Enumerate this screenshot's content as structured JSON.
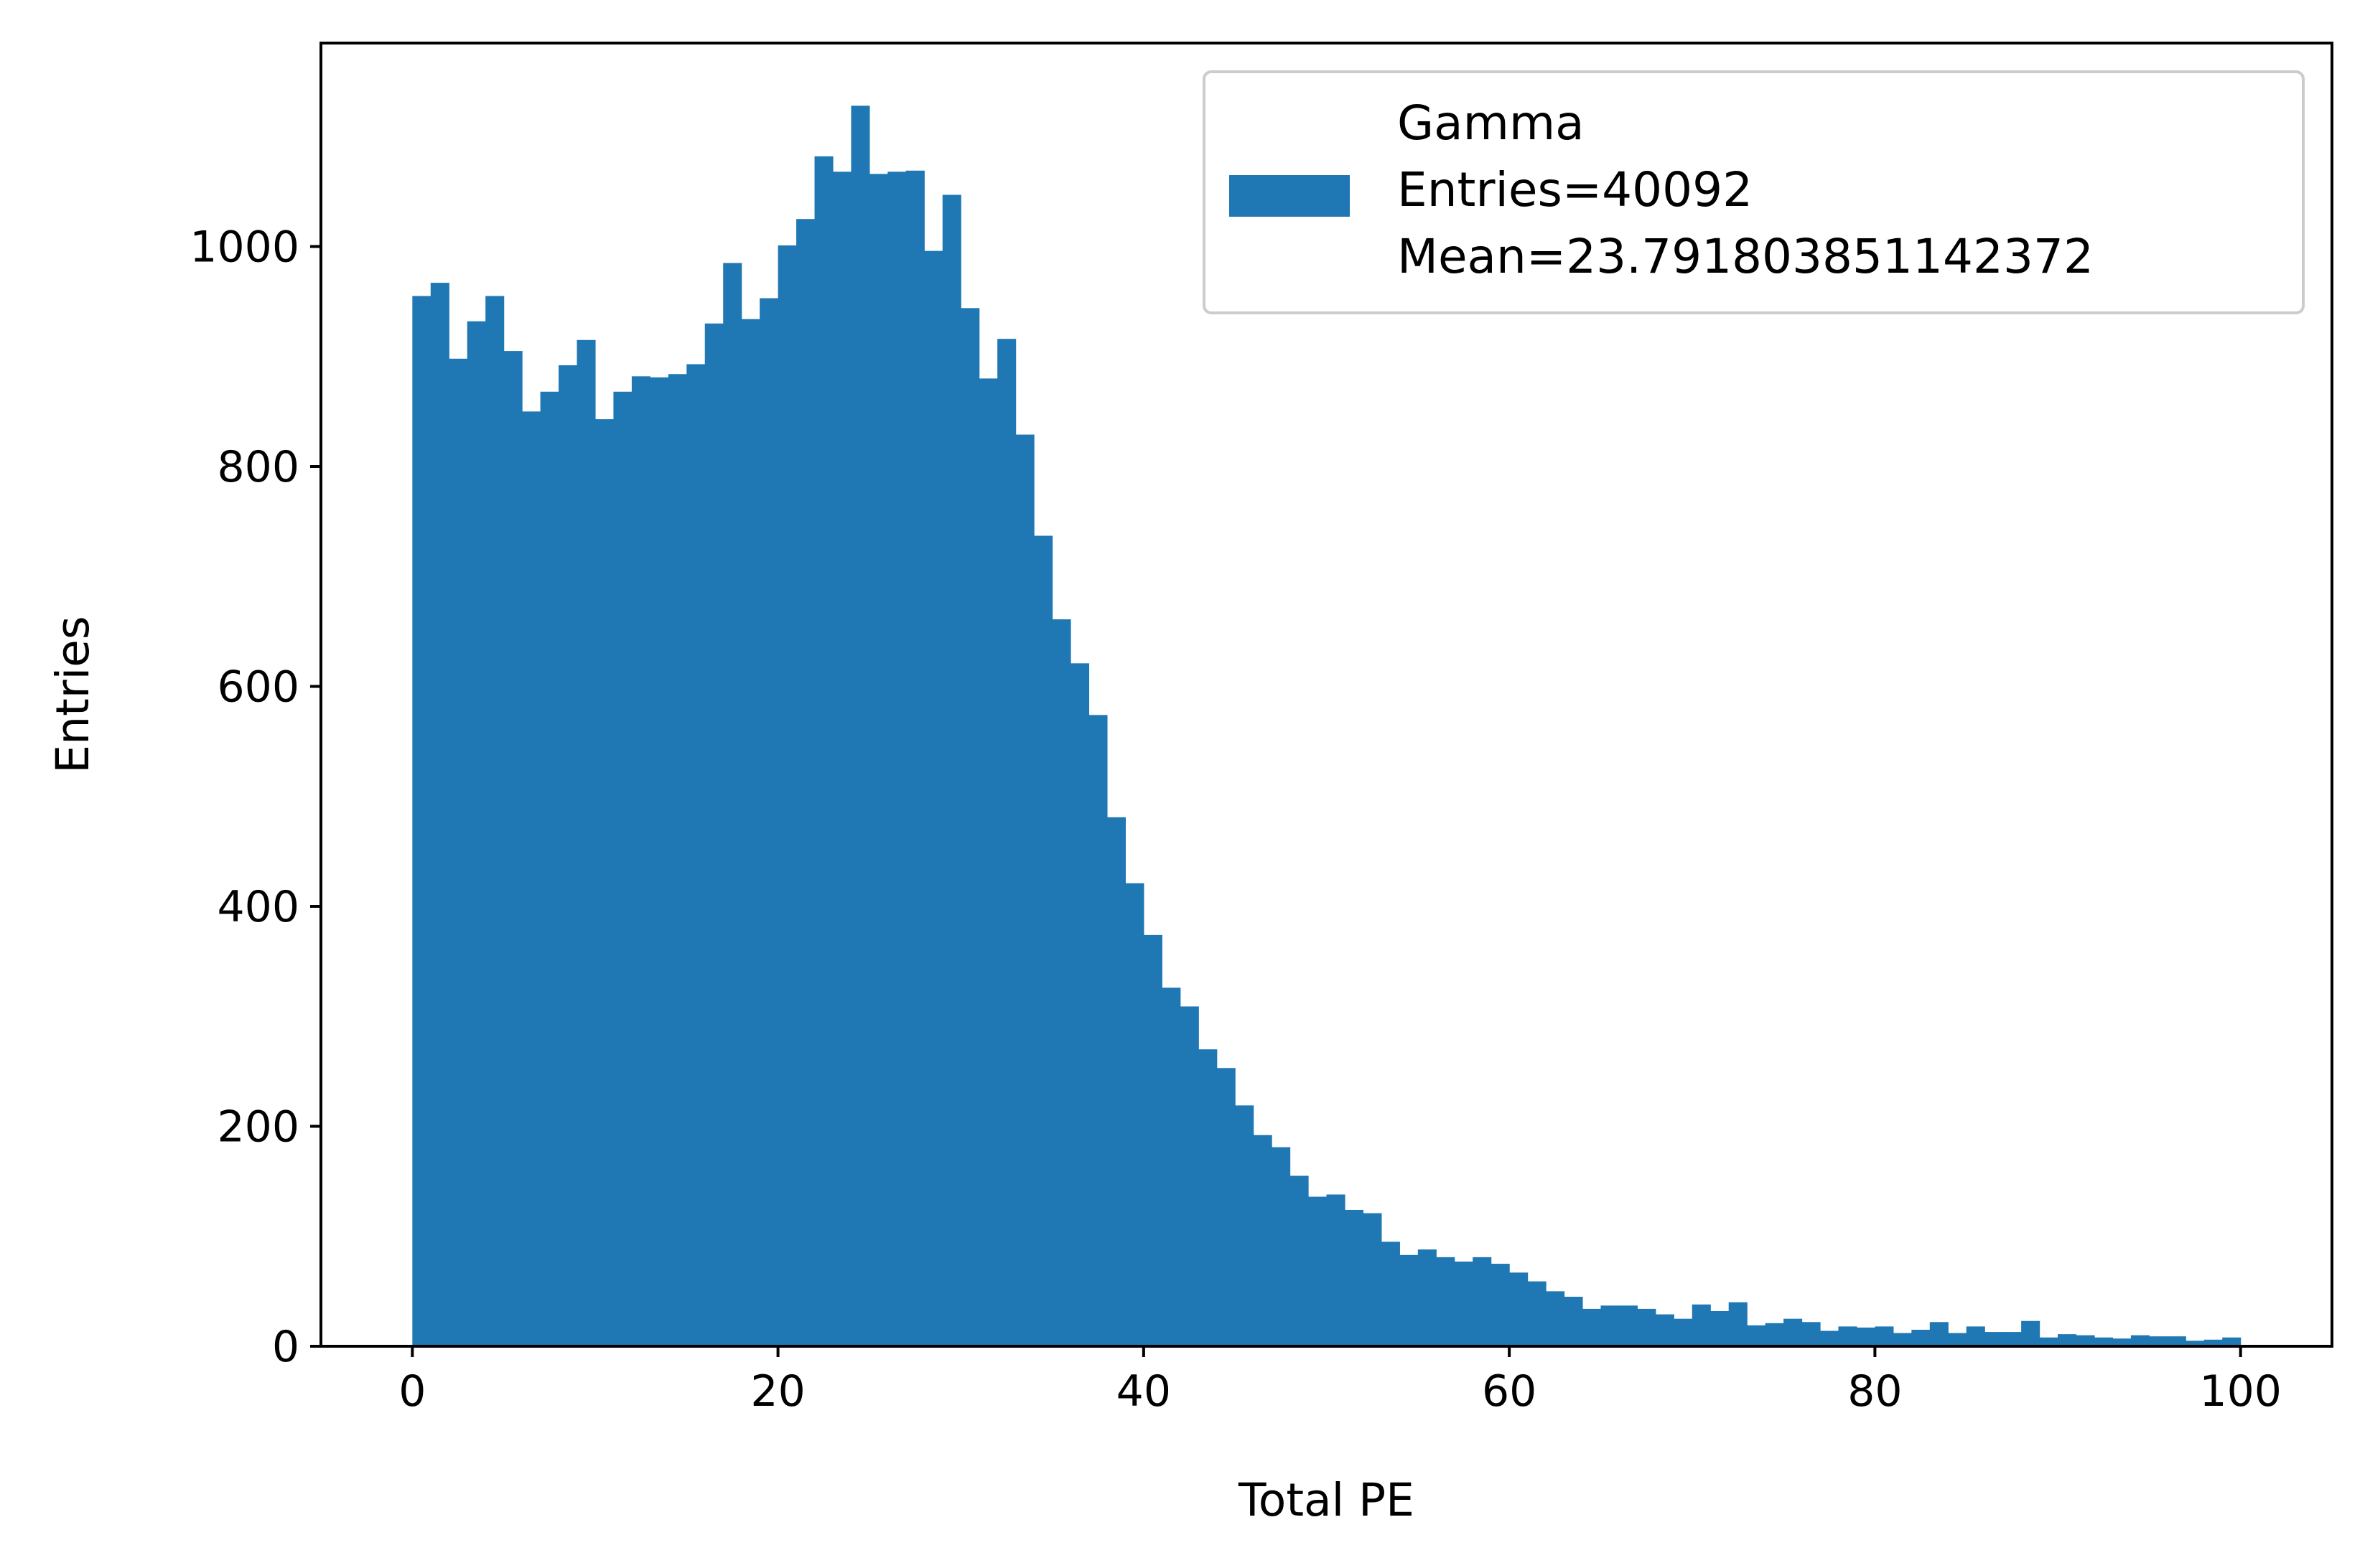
{
  "chart_data": {
    "type": "bar",
    "subtype": "histogram",
    "xlabel": "Total PE",
    "ylabel": "Entries",
    "xlim": [
      -5,
      105
    ],
    "ylim": [
      0,
      1185
    ],
    "x_ticks": [
      0,
      20,
      40,
      60,
      80,
      100
    ],
    "y_ticks": [
      0,
      200,
      400,
      600,
      800,
      1000
    ],
    "bin_edges_range": [
      0,
      100
    ],
    "bin_width": 1,
    "grid": false,
    "legend_position": "top-right",
    "series": [
      {
        "name": "Gamma",
        "legend_lines": [
          "Gamma",
          "Entries=40092",
          "Mean=23.791803851142372"
        ],
        "color": "#1f77b4",
        "values": [
          955,
          967,
          898,
          932,
          955,
          905,
          850,
          868,
          892,
          915,
          843,
          868,
          882,
          881,
          884,
          893,
          930,
          985,
          934,
          953,
          1001,
          1025,
          1082,
          1068,
          1128,
          1066,
          1068,
          1069,
          996,
          1047,
          944,
          880,
          916,
          829,
          737,
          661,
          621,
          574,
          481,
          421,
          374,
          326,
          309,
          270,
          253,
          219,
          192,
          181,
          155,
          136,
          138,
          124,
          121,
          95,
          83,
          88,
          81,
          77,
          81,
          75,
          67,
          59,
          50,
          45,
          34,
          37,
          37,
          34,
          29,
          25,
          38,
          32,
          40,
          19,
          21,
          25,
          22,
          14,
          18,
          17,
          18,
          12,
          15,
          22,
          12,
          18,
          13,
          13,
          23,
          8,
          11,
          10,
          8,
          7,
          10,
          9,
          9,
          5,
          6,
          8
        ]
      }
    ]
  }
}
